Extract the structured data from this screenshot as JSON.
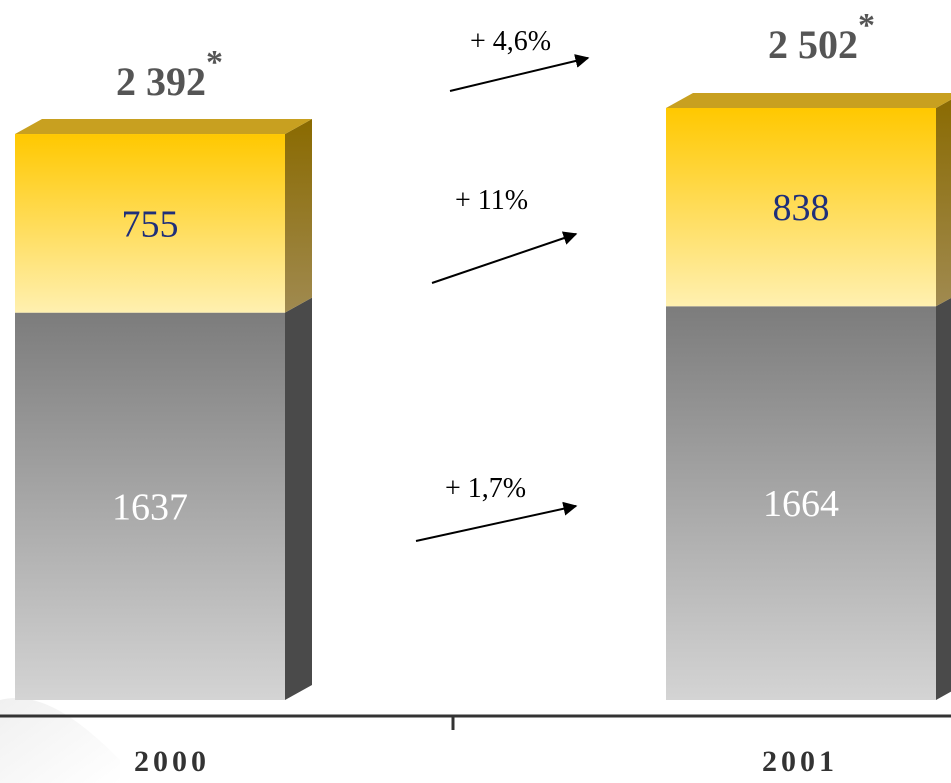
{
  "chart_data": {
    "type": "bar",
    "stacked": true,
    "categories": [
      "2000",
      "2001"
    ],
    "series": [
      {
        "values": [
          1637,
          1664
        ],
        "color": "#8a8a8a"
      },
      {
        "values": [
          755,
          838
        ],
        "color": "#ffcc00"
      }
    ],
    "totals": [
      "2 392",
      "2 502"
    ],
    "total_marker": "*",
    "segment_labels": {
      "bottom": [
        "1637",
        "1664"
      ],
      "top": [
        "755",
        "838"
      ]
    },
    "changes": {
      "total": "+ 4,6%",
      "top": "+ 11%",
      "bottom": "+ 1,7%"
    },
    "ylim": [
      0,
      2502
    ],
    "grid": false,
    "legend": "none"
  }
}
